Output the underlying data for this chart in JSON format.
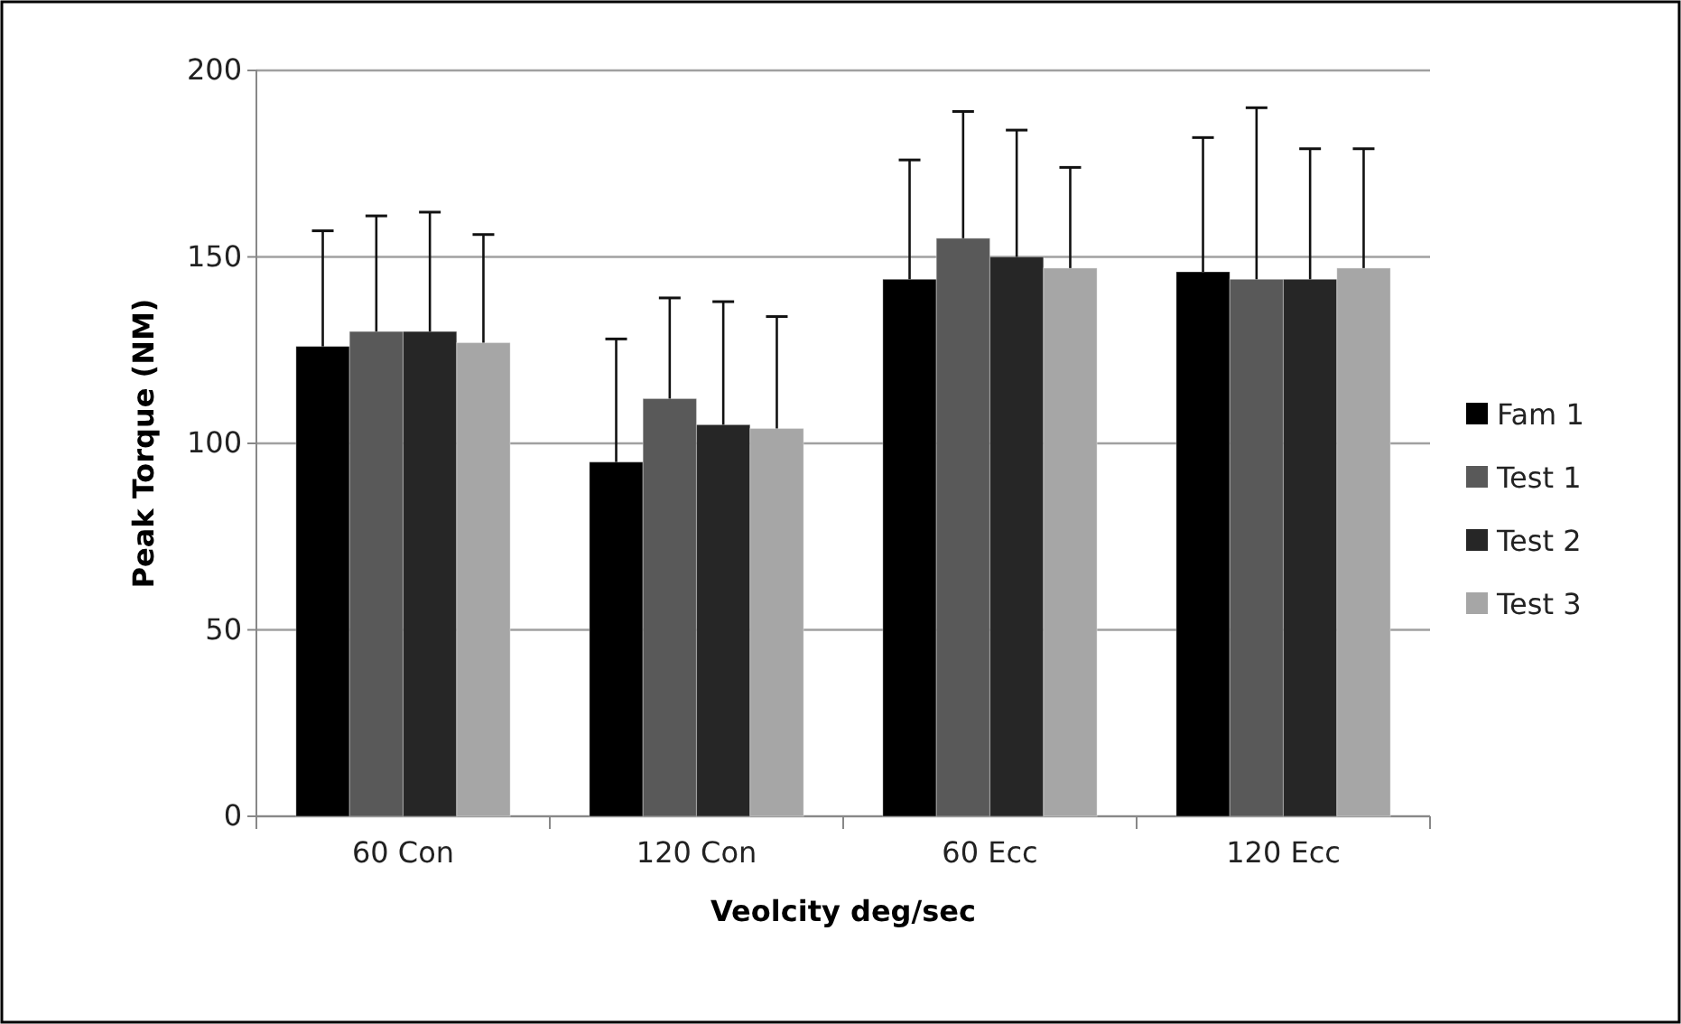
{
  "chart_data": {
    "type": "bar",
    "xlabel": "Veolcity deg/sec",
    "ylabel": "Peak Torque (NM)",
    "categories": [
      "60 Con",
      "120 Con",
      "60 Ecc",
      "120 Ecc"
    ],
    "series": [
      {
        "name": "Fam 1",
        "color": "#000000",
        "values": [
          126,
          95,
          144,
          146
        ],
        "errors": [
          [
            126,
            157
          ],
          [
            95,
            128
          ],
          [
            144,
            176
          ],
          [
            146,
            182
          ]
        ]
      },
      {
        "name": "Test 1",
        "color": "#595959",
        "values": [
          130,
          112,
          155,
          144
        ],
        "errors": [
          [
            130,
            161
          ],
          [
            112,
            139
          ],
          [
            155,
            189
          ],
          [
            144,
            190
          ]
        ]
      },
      {
        "name": "Test 2",
        "color": "#262626",
        "values": [
          130,
          105,
          150,
          144
        ],
        "errors": [
          [
            130,
            162
          ],
          [
            105,
            138
          ],
          [
            150,
            184
          ],
          [
            144,
            179
          ]
        ]
      },
      {
        "name": "Test 3",
        "color": "#a6a6a6",
        "values": [
          127,
          104,
          147,
          147
        ],
        "errors": [
          [
            127,
            156
          ],
          [
            104,
            134
          ],
          [
            147,
            174
          ],
          [
            147,
            179
          ]
        ]
      }
    ],
    "ylim": [
      0,
      200
    ],
    "yticks": [
      0,
      50,
      100,
      150,
      200
    ],
    "grid": "y",
    "legend": "right"
  }
}
